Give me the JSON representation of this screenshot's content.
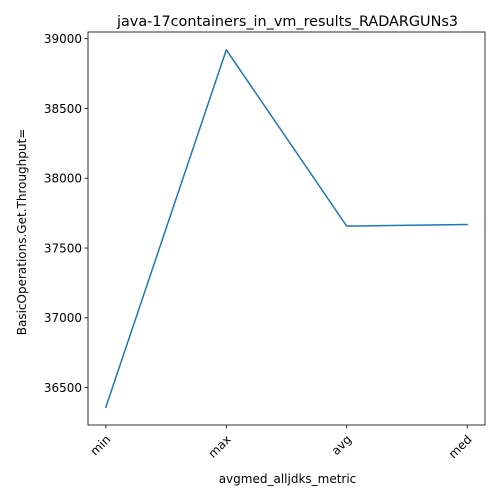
{
  "chart_data": {
    "type": "line",
    "title": "java-17containers_in_vm_results_RADARGUNs3",
    "xlabel": "avgmed_alljdks_metric",
    "ylabel": "BasicOperations.Get.Throughput=",
    "categories": [
      "min",
      "max",
      "avg",
      "med"
    ],
    "series": [
      {
        "values": [
          36360,
          38920,
          37657,
          37669
        ],
        "color": "#1f77b4"
      }
    ],
    "yticks": [
      36500,
      37000,
      37500,
      38000,
      38500,
      39000
    ],
    "ylim": [
      36232,
      39048
    ],
    "grid": false,
    "legend": "none"
  }
}
